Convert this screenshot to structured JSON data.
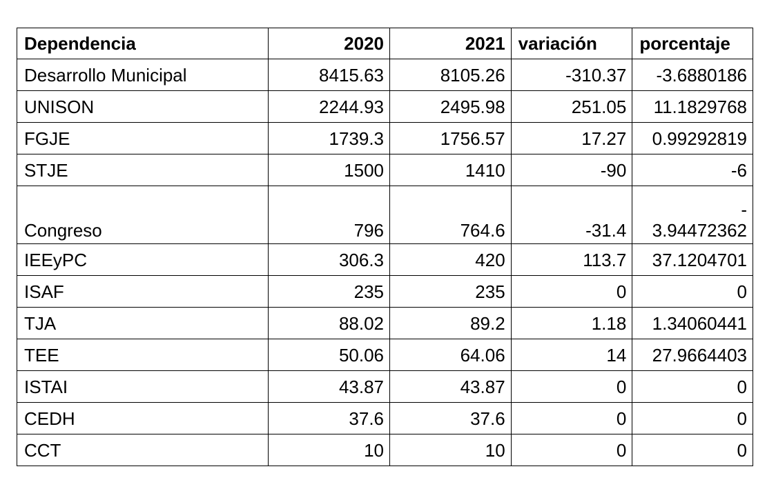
{
  "table": {
    "headers": [
      "Dependencia",
      "2020",
      "2021",
      "variación",
      "porcentaje"
    ],
    "rows": [
      {
        "dependencia": "Desarrollo Municipal",
        "y2020": "8415.63",
        "y2021": "8105.26",
        "variacion": "-310.37",
        "porcentaje": "-3.6880186"
      },
      {
        "dependencia": "UNISON",
        "y2020": "2244.93",
        "y2021": "2495.98",
        "variacion": "251.05",
        "porcentaje": "11.1829768"
      },
      {
        "dependencia": "FGJE",
        "y2020": "1739.3",
        "y2021": "1756.57",
        "variacion": "17.27",
        "porcentaje": "0.99292819"
      },
      {
        "dependencia": "STJE",
        "y2020": "1500",
        "y2021": "1410",
        "variacion": "-90",
        "porcentaje": "-6"
      },
      {
        "dependencia": "Congreso",
        "y2020": "796",
        "y2021": "764.6",
        "variacion": "-31.4",
        "porcentaje_sign": "-",
        "porcentaje": "3.94472362"
      },
      {
        "dependencia": "IEEyPC",
        "y2020": "306.3",
        "y2021": "420",
        "variacion": "113.7",
        "porcentaje": "37.1204701"
      },
      {
        "dependencia": "ISAF",
        "y2020": "235",
        "y2021": "235",
        "variacion": "0",
        "porcentaje": "0"
      },
      {
        "dependencia": "TJA",
        "y2020": "88.02",
        "y2021": "89.2",
        "variacion": "1.18",
        "porcentaje": "1.34060441"
      },
      {
        "dependencia": "TEE",
        "y2020": "50.06",
        "y2021": "64.06",
        "variacion": "14",
        "porcentaje": "27.9664403"
      },
      {
        "dependencia": "ISTAI",
        "y2020": "43.87",
        "y2021": "43.87",
        "variacion": "0",
        "porcentaje": "0"
      },
      {
        "dependencia": "CEDH",
        "y2020": "37.6",
        "y2021": "37.6",
        "variacion": "0",
        "porcentaje": "0"
      },
      {
        "dependencia": "CCT",
        "y2020": "10",
        "y2021": "10",
        "variacion": "0",
        "porcentaje": "0"
      }
    ]
  }
}
